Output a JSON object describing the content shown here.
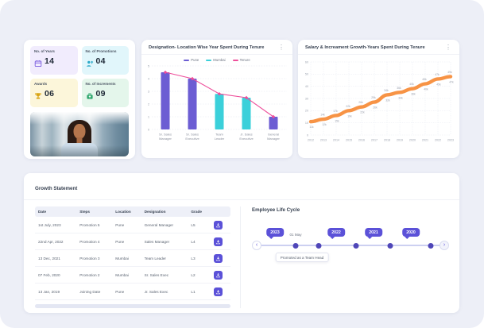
{
  "icons": {
    "kebab": "⋮",
    "prev": "‹",
    "next": "›"
  },
  "stats": {
    "items": [
      {
        "label": "No. of Years",
        "value": "14",
        "icon": "calendar-icon",
        "bg": "#f1ecfd",
        "icon_color": "#7a5cdf"
      },
      {
        "label": "No. of Promotions",
        "value": "04",
        "icon": "person-up-icon",
        "bg": "#e1f6fb",
        "icon_color": "#2ba9c8"
      },
      {
        "label": "Awards",
        "value": "06",
        "icon": "trophy-icon",
        "bg": "#fcf6da",
        "icon_color": "#d9a514"
      },
      {
        "label": "No. of Increments",
        "value": "09",
        "icon": "briefcase-up-icon",
        "bg": "#e4f6eb",
        "icon_color": "#2fa76e"
      }
    ]
  },
  "chart_data": [
    {
      "type": "bar",
      "title": "Designation- Location Wise Year Spent During Tenure",
      "categories": [
        "Sr. Sales Manager",
        "Sr. Sales Executive",
        "Team Leader",
        "Jr. Sales Executive",
        "General Manager"
      ],
      "bar_values": [
        4.5,
        4,
        2.8,
        2.5,
        1
      ],
      "bar_series": [
        "Pune",
        "Pune",
        "Mumbai",
        "Mumbai",
        "Pune"
      ],
      "line_series": {
        "name": "Tenure",
        "values": [
          4.5,
          4,
          2.8,
          2.5,
          1
        ],
        "color": "#ee4f9b"
      },
      "legend": [
        {
          "label": "Pune",
          "color": "#6c5dd3"
        },
        {
          "label": "Mumbai",
          "color": "#3bd0da"
        },
        {
          "label": "Tenure",
          "color": "#ee4f9b"
        }
      ],
      "ylim": [
        0,
        5
      ],
      "yticks": [
        0,
        1,
        2,
        3,
        4,
        5
      ],
      "grid": "horizontal-dashed"
    },
    {
      "type": "line",
      "title": "Salary & Increament Growth-Years Spent During Tenure",
      "x": [
        "2012",
        "2013",
        "2014",
        "2015",
        "2016",
        "2017",
        "2018",
        "2019",
        "2020",
        "2021",
        "2022",
        "2023"
      ],
      "values": [
        11,
        13,
        16,
        20,
        23,
        27,
        33,
        35,
        38,
        42,
        46,
        48
      ],
      "labels_above": [
        "",
        "14k",
        "17k",
        "22k",
        "26k",
        "29k",
        "34k",
        "36k",
        "40k",
        "45k",
        "47k",
        "49k"
      ],
      "labels_below": [
        "11k",
        "12k",
        "15k",
        "19k",
        "22k",
        "26k",
        "32k",
        "34k",
        "36k",
        "40k",
        "45k",
        "47k"
      ],
      "color": "#f79345",
      "ylim": [
        0,
        60
      ],
      "yticks": [
        0,
        10,
        20,
        30,
        40,
        50,
        60
      ],
      "grid": "both-dashed"
    }
  ],
  "growth": {
    "title": "Growth Statement",
    "table": {
      "columns": [
        "Date",
        "Steps",
        "Location",
        "Designation",
        "Grade",
        ""
      ],
      "rows": [
        {
          "date": "1st July, 2023",
          "step": "Promotion 5",
          "location": "Pune",
          "designation": "General Manager",
          "grade": "L5"
        },
        {
          "date": "22nd Apr, 2022",
          "step": "Promotion 4",
          "location": "Pune",
          "designation": "Sales Manager",
          "grade": "L4"
        },
        {
          "date": "13 Dec, 2021",
          "step": "Promotion 3",
          "location": "Mumbai",
          "designation": "Team Leader",
          "grade": "L3"
        },
        {
          "date": "07 Feb, 2020",
          "step": "Promotion 2",
          "location": "Mumbai",
          "designation": "Sr. Sales Exec",
          "grade": "L2"
        },
        {
          "date": "13 Jan, 2019",
          "step": "Joining Date",
          "location": "Pune",
          "designation": "Jr. Sales Exec",
          "grade": "L1"
        }
      ],
      "row_action_icon": "download-icon"
    }
  },
  "lifecycle": {
    "title": "Employee Life Cycle",
    "years": [
      "2023",
      "2022",
      "2021",
      "2020"
    ],
    "event_label": "01 May",
    "tooltip": "Promoted as a Team Head",
    "badge_color": "#5b51d8"
  }
}
